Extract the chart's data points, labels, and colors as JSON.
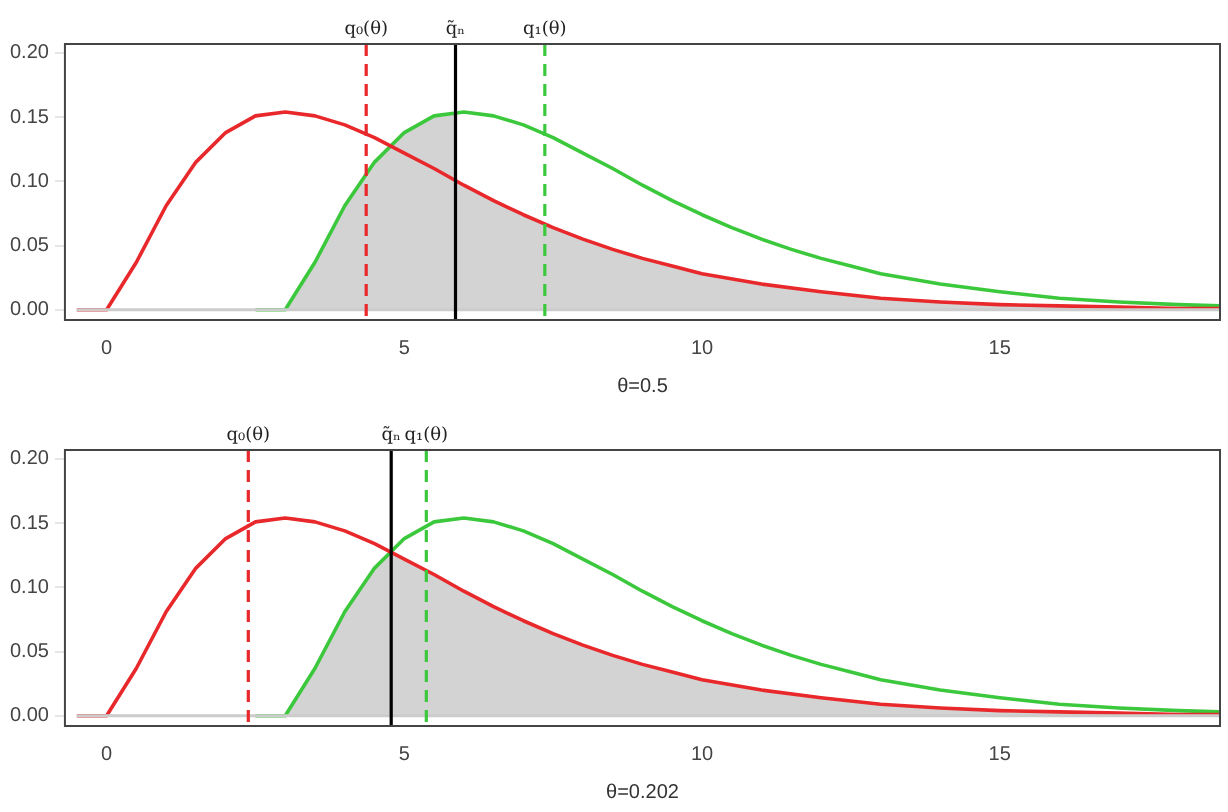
{
  "chart_data": [
    {
      "type": "line",
      "xlabel": "θ=0.5",
      "legend": false,
      "grid": false,
      "xlim": [
        -0.7,
        18.7
      ],
      "xticks": [
        0,
        5,
        10,
        15
      ],
      "ylim": [
        -0.008,
        0.207
      ],
      "yticks": [
        {
          "value": 0,
          "label": "0.00"
        },
        {
          "value": 0.05,
          "label": "0.05"
        },
        {
          "value": 0.1,
          "label": "0.10"
        },
        {
          "value": 0.15,
          "label": "0.15"
        },
        {
          "value": 0.2,
          "label": "0.20"
        }
      ],
      "series": [
        {
          "type": "area",
          "color": "#d3d3d3",
          "x": [
            3,
            3.5,
            4,
            4.5,
            5,
            5.5,
            5.86,
            5.86,
            6,
            6.5,
            7,
            7.5,
            8,
            8.5,
            9,
            9.5,
            10,
            11,
            12,
            13,
            14,
            15,
            16,
            17,
            18,
            18.7
          ],
          "values": [
            0,
            0.037,
            0.081,
            0.115,
            0.138,
            0.151,
            0.154,
            0.101,
            0.097,
            0.085,
            0.074,
            0.064,
            0.055,
            0.047,
            0.04,
            0.034,
            0.028,
            0.02,
            0.014,
            0.009,
            0.006,
            0.004,
            0.003,
            0.002,
            0.001,
            0.001
          ]
        },
        {
          "type": "line",
          "color": "#e8282b",
          "x": [
            -0.5,
            0,
            0.5,
            1,
            1.5,
            2,
            2.5,
            3,
            3.5,
            4,
            4.5,
            5,
            5.5,
            6,
            6.5,
            7,
            7.5,
            8,
            8.5,
            9,
            9.5,
            10,
            11,
            12,
            13,
            14,
            15,
            16,
            17,
            18,
            18.7
          ],
          "values": [
            0,
            0,
            0.037,
            0.081,
            0.115,
            0.138,
            0.151,
            0.154,
            0.151,
            0.144,
            0.134,
            0.122,
            0.11,
            0.097,
            0.085,
            0.074,
            0.064,
            0.055,
            0.047,
            0.04,
            0.034,
            0.028,
            0.02,
            0.014,
            0.009,
            0.006,
            0.004,
            0.003,
            0.002,
            0.001,
            0.001
          ]
        },
        {
          "type": "line",
          "color": "#3cc83c",
          "x": [
            2.5,
            3,
            3.5,
            4,
            4.5,
            5,
            5.5,
            6,
            6.5,
            7,
            7.5,
            8,
            8.5,
            9,
            9.5,
            10,
            10.5,
            11,
            11.5,
            12,
            12.5,
            13,
            14,
            15,
            16,
            17,
            18,
            18.7
          ],
          "values": [
            0,
            0,
            0.037,
            0.081,
            0.115,
            0.138,
            0.151,
            0.154,
            0.151,
            0.144,
            0.134,
            0.122,
            0.11,
            0.097,
            0.085,
            0.074,
            0.064,
            0.055,
            0.047,
            0.04,
            0.034,
            0.028,
            0.02,
            0.014,
            0.009,
            0.006,
            0.004,
            0.003
          ]
        }
      ],
      "ref_lines": [
        {
          "axis": "y",
          "value": 0,
          "color": "#cccccc",
          "line_style": "solid"
        },
        {
          "axis": "x",
          "value": 4.36,
          "label": "q₀(θ)",
          "color": "#e8282b",
          "line_style": "dashed"
        },
        {
          "axis": "x",
          "value": 5.86,
          "label": "q̃ₙ",
          "color": "#000000",
          "line_style": "solid"
        },
        {
          "axis": "x",
          "value": 7.36,
          "label": "q₁(θ)",
          "color": "#3cc83c",
          "line_style": "dashed"
        }
      ]
    },
    {
      "type": "line",
      "xlabel": "θ=0.202",
      "legend": false,
      "grid": false,
      "xlim": [
        -0.7,
        18.7
      ],
      "xticks": [
        0,
        5,
        10,
        15
      ],
      "ylim": [
        -0.008,
        0.207
      ],
      "yticks": [
        {
          "value": 0,
          "label": "0.00"
        },
        {
          "value": 0.05,
          "label": "0.05"
        },
        {
          "value": 0.1,
          "label": "0.10"
        },
        {
          "value": 0.15,
          "label": "0.15"
        },
        {
          "value": 0.2,
          "label": "0.20"
        }
      ],
      "series": [
        {
          "type": "area",
          "color": "#d3d3d3",
          "x": [
            3,
            3.5,
            4,
            4.5,
            4.78,
            4.78,
            5,
            5.5,
            6,
            6.5,
            7,
            7.5,
            8,
            8.5,
            9,
            9.5,
            10,
            11,
            12,
            13,
            14,
            15,
            16,
            17,
            18,
            18.7
          ],
          "values": [
            0,
            0.037,
            0.081,
            0.115,
            0.13,
            0.127,
            0.122,
            0.11,
            0.097,
            0.085,
            0.074,
            0.064,
            0.055,
            0.047,
            0.04,
            0.034,
            0.028,
            0.02,
            0.014,
            0.009,
            0.006,
            0.004,
            0.003,
            0.002,
            0.001,
            0.001
          ]
        },
        {
          "type": "line",
          "color": "#e8282b",
          "x": [
            -0.5,
            0,
            0.5,
            1,
            1.5,
            2,
            2.5,
            3,
            3.5,
            4,
            4.5,
            5,
            5.5,
            6,
            6.5,
            7,
            7.5,
            8,
            8.5,
            9,
            9.5,
            10,
            11,
            12,
            13,
            14,
            15,
            16,
            17,
            18,
            18.7
          ],
          "values": [
            0,
            0,
            0.037,
            0.081,
            0.115,
            0.138,
            0.151,
            0.154,
            0.151,
            0.144,
            0.134,
            0.122,
            0.11,
            0.097,
            0.085,
            0.074,
            0.064,
            0.055,
            0.047,
            0.04,
            0.034,
            0.028,
            0.02,
            0.014,
            0.009,
            0.006,
            0.004,
            0.003,
            0.002,
            0.001,
            0.001
          ]
        },
        {
          "type": "line",
          "color": "#3cc83c",
          "x": [
            2.5,
            3,
            3.5,
            4,
            4.5,
            5,
            5.5,
            6,
            6.5,
            7,
            7.5,
            8,
            8.5,
            9,
            9.5,
            10,
            10.5,
            11,
            11.5,
            12,
            12.5,
            13,
            14,
            15,
            16,
            17,
            18,
            18.7
          ],
          "values": [
            0,
            0,
            0.037,
            0.081,
            0.115,
            0.138,
            0.151,
            0.154,
            0.151,
            0.144,
            0.134,
            0.122,
            0.11,
            0.097,
            0.085,
            0.074,
            0.064,
            0.055,
            0.047,
            0.04,
            0.034,
            0.028,
            0.02,
            0.014,
            0.009,
            0.006,
            0.004,
            0.003
          ]
        }
      ],
      "ref_lines": [
        {
          "axis": "y",
          "value": 0,
          "color": "#cccccc",
          "line_style": "solid"
        },
        {
          "axis": "x",
          "value": 2.38,
          "label": "q₀(θ)",
          "color": "#e8282b",
          "line_style": "dashed"
        },
        {
          "axis": "x",
          "value": 4.78,
          "label": "q̃ₙ",
          "color": "#000000",
          "line_style": "solid"
        },
        {
          "axis": "x",
          "value": 5.37,
          "label": "q₁(θ)",
          "color": "#3cc83c",
          "line_style": "dashed"
        }
      ]
    }
  ]
}
